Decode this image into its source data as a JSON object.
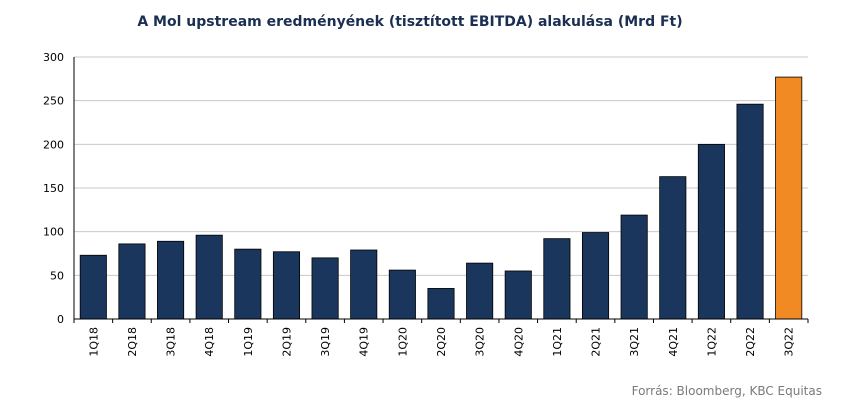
{
  "chart_data": {
    "type": "bar",
    "title": "A Mol upstream eredményének  (tisztított EBITDA) alakulása (Mrd Ft)",
    "categories": [
      "1Q18",
      "2Q18",
      "3Q18",
      "4Q18",
      "1Q19",
      "2Q19",
      "3Q19",
      "4Q19",
      "1Q20",
      "2Q20",
      "3Q20",
      "4Q20",
      "1Q21",
      "2Q21",
      "3Q21",
      "4Q21",
      "1Q22",
      "2Q22",
      "3Q22"
    ],
    "values": [
      73,
      86,
      89,
      96,
      80,
      77,
      70,
      79,
      56,
      35,
      64,
      55,
      92,
      99,
      119,
      163,
      200,
      246,
      277
    ],
    "ylim": [
      0,
      300
    ],
    "yticks": [
      0,
      50,
      100,
      150,
      200,
      250,
      300
    ],
    "xlabel": "",
    "ylabel": "",
    "grid": true,
    "colors": {
      "bar": "#1b365d",
      "highlight": "#f28a23",
      "grid": "#c8c8c8"
    },
    "highlight_index": 18
  },
  "source": "Forrás: Bloomberg,  KBC Equitas"
}
